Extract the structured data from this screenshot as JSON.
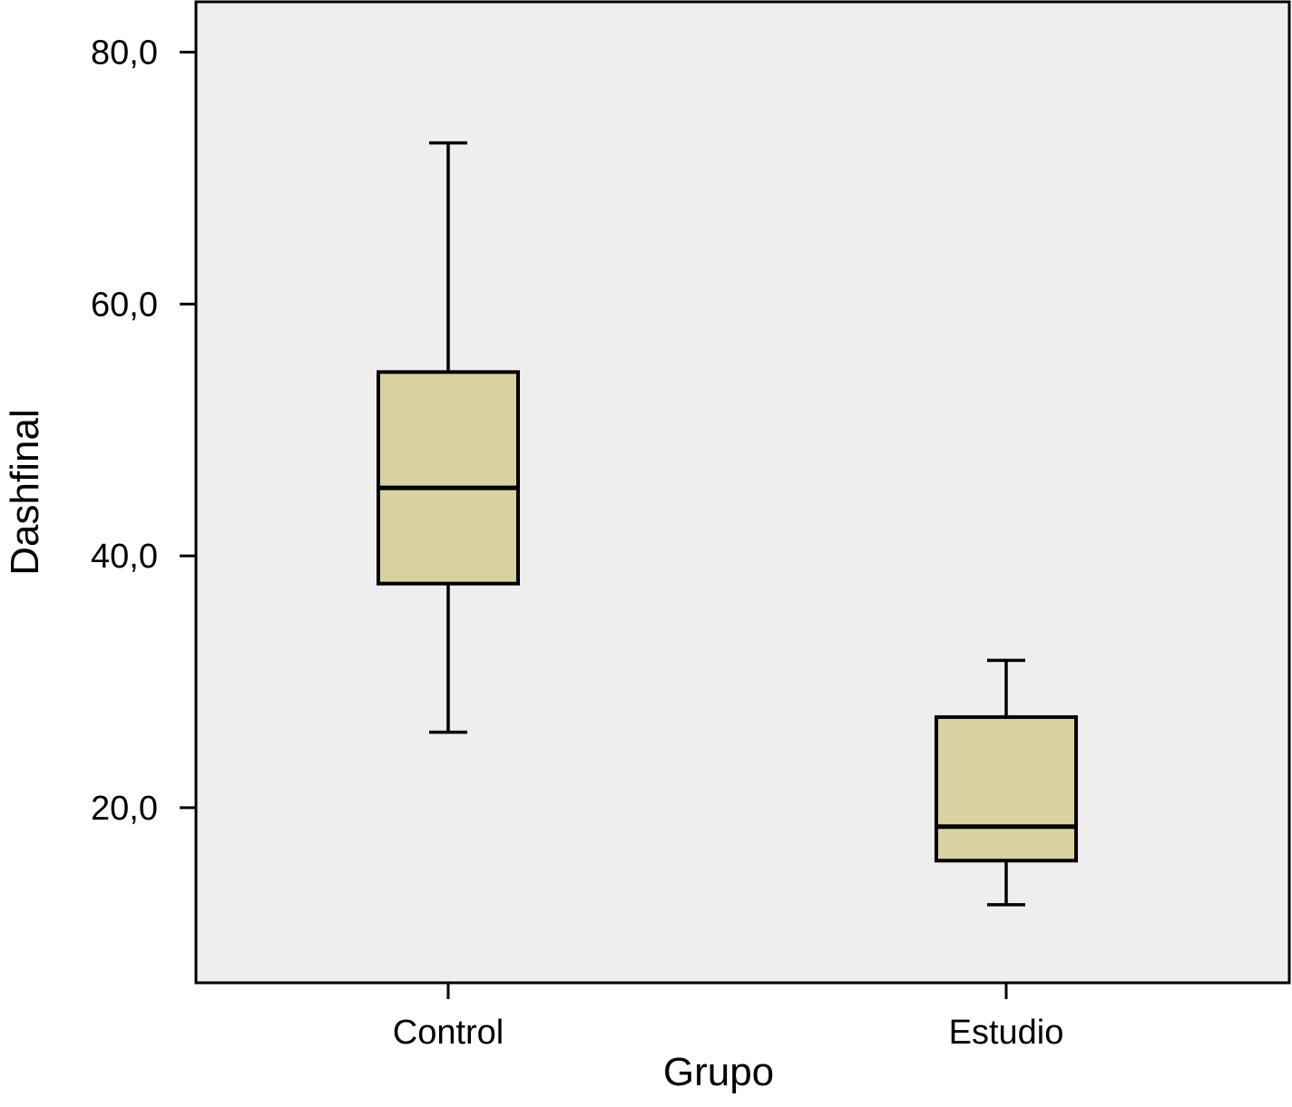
{
  "chart_data": {
    "type": "boxplot",
    "title": "",
    "xlabel": "Grupo",
    "ylabel": "Dashfinal",
    "categories": [
      "Control",
      "Estudio"
    ],
    "y_ticks": [
      "80,0",
      "60,0",
      "40,0",
      "20,0"
    ],
    "y_tick_values": [
      80,
      60,
      40,
      20
    ],
    "ylim": [
      6.1,
      84.0
    ],
    "grid": false,
    "boxes": [
      {
        "category": "Control",
        "whisker_low": 26.0,
        "q1": 37.8,
        "median": 45.4,
        "q3": 54.6,
        "whisker_high": 72.8
      },
      {
        "category": "Estudio",
        "whisker_low": 12.3,
        "q1": 15.8,
        "median": 18.5,
        "q3": 27.2,
        "whisker_high": 31.7
      }
    ],
    "colors": {
      "plot_background": "#eeeeee",
      "box_fill": "#d9d1a1",
      "stroke": "#000000"
    }
  }
}
